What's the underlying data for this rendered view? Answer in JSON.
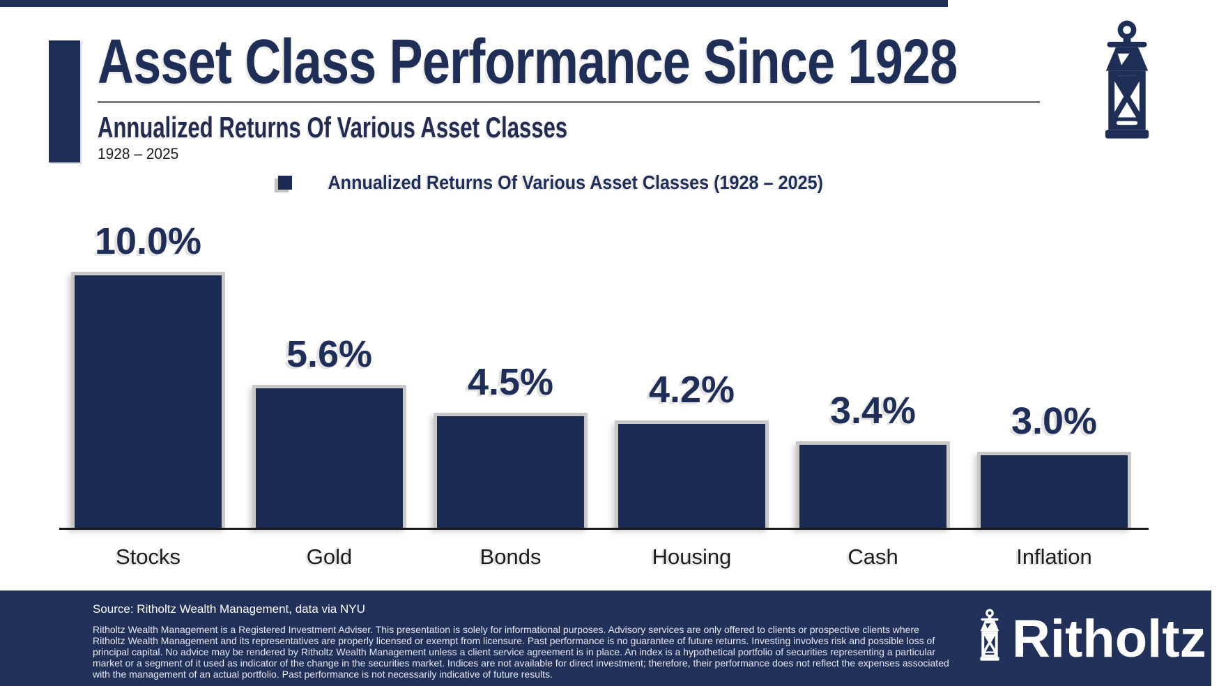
{
  "header": {
    "title": "Asset Class Performance Since 1928",
    "subtitle": "Annualized Returns Of Various Asset Classes",
    "date_range": "1928 – 2025"
  },
  "legend": {
    "marker": "square-marker",
    "label": "Annualized Returns Of Various Asset Classes (1928 – 2025)"
  },
  "chart_data": {
    "type": "bar",
    "title": "Annualized Returns Of Various Asset Classes (1928 – 2025)",
    "categories": [
      "Stocks",
      "Gold",
      "Bonds",
      "Housing",
      "Cash",
      "Inflation"
    ],
    "values": [
      10.0,
      5.6,
      4.5,
      4.2,
      3.4,
      3.0
    ],
    "value_labels": [
      "10.0%",
      "5.6%",
      "4.5%",
      "4.2%",
      "3.4%",
      "3.0%"
    ],
    "xlabel": "",
    "ylabel": "",
    "ylim": [
      0,
      10.5
    ],
    "grid": false,
    "legend_position": "top-center",
    "bar_color": "#1b2a54",
    "axis_color": "#1a1a1a"
  },
  "footer": {
    "source": "Source: Ritholtz Wealth Management, data via NYU",
    "disclaimer": "Ritholtz Wealth Management is a Registered Investment Adviser. This presentation is solely for informational purposes. Advisory services are only offered to clients or prospective clients where Ritholtz Wealth Management and its representatives are properly licensed or exempt from licensure. Past performance is no guarantee of future returns. Investing involves risk and possible loss of principal capital. No advice may be rendered by Ritholtz Wealth Management unless a client service agreement is in place. An index is a hypothetical portfolio of securities representing a particular market or a segment of it used as indicator of the change in the securities market. Indices are not available for direct investment; therefore, their performance does not reflect the expenses associated with the management of an actual portfolio. Past performance is not necessarily indicative of future results.",
    "brand": "Ritholtz"
  },
  "colors": {
    "navy": "#1f2e57",
    "bar_navy": "#1b2a54",
    "footer_bg": "#223159",
    "edge_gray": "#c9c9c9",
    "rule_gray": "#7a7a7a"
  }
}
